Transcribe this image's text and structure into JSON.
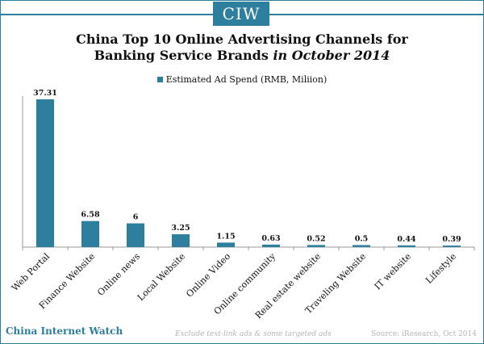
{
  "brand": {
    "logo": "CIW",
    "name": "China Internet Watch"
  },
  "title": {
    "line1": "China Top 10 Online Advertising Channels for",
    "line2_main": "Banking Service Brands",
    "line2_em": "in October 2014"
  },
  "footer": {
    "note": "Exclude text-link ads & some targeted ads",
    "source": "Source: iResearch, Oct 2014"
  },
  "colors": {
    "bar": "#2e7e9e",
    "accent": "#2e7e9e"
  },
  "chart_data": {
    "type": "bar",
    "categories": [
      "Web Portal",
      "Finance Website",
      "Online news",
      "Local Website",
      "Online Video",
      "Online community",
      "Real estate website",
      "Traveling Website",
      "IT website",
      "Lifestyle"
    ],
    "series": [
      {
        "name": "Estimated Ad Spend (RMB, Miliion)",
        "values": [
          37.31,
          6.58,
          6,
          3.25,
          1.15,
          0.63,
          0.52,
          0.5,
          0.44,
          0.39
        ]
      }
    ],
    "data_labels": [
      "37.31",
      "6.58",
      "6",
      "3.25",
      "1.15",
      "0.63",
      "0.52",
      "0.5",
      "0.44",
      "0.39"
    ],
    "legend_position": "top-center",
    "grid": false
  }
}
